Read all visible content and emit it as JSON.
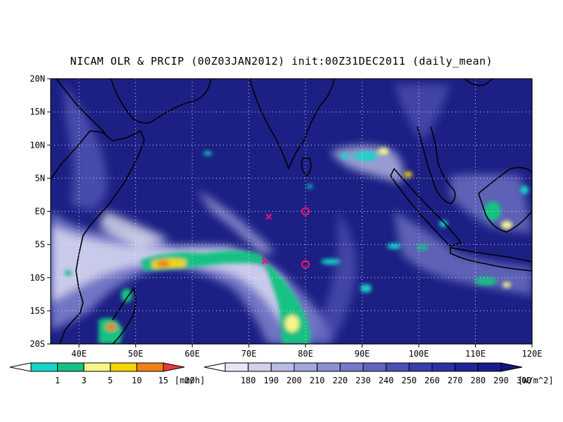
{
  "title": "NICAM OLR & PRCIP (00Z03JAN2012) init:00Z31DEC2011 (daily_mean)",
  "map": {
    "lon_range": [
      35,
      120
    ],
    "lat_range": [
      -20,
      20
    ],
    "lat_labels": [
      "20N",
      "15N",
      "10N",
      "5N",
      "EQ",
      "5S",
      "10S",
      "15S",
      "20S"
    ],
    "lon_labels": [
      "40E",
      "50E",
      "60E",
      "70E",
      "80E",
      "90E",
      "100E",
      "110E",
      "120E"
    ],
    "grid": "dotted",
    "background_color": "#1c2085"
  },
  "markers": [
    {
      "type": "cross",
      "lon": 73.5,
      "lat": -0.8,
      "color": "#e8107a"
    },
    {
      "type": "cross",
      "lon": 72.8,
      "lat": -7.5,
      "color": "#e8107a"
    },
    {
      "type": "circle",
      "lon": 80.0,
      "lat": 0.0,
      "color": "#e8107a"
    },
    {
      "type": "circle",
      "lon": 80.0,
      "lat": -8.0,
      "color": "#e8107a"
    }
  ],
  "precip_legend": {
    "labels": [
      "1",
      "3",
      "5",
      "10",
      "15",
      "20"
    ],
    "unit": "[mm/h]",
    "colors": [
      "#ffffff",
      "#16d6c8",
      "#16c182",
      "#f5f58c",
      "#f4d400",
      "#f08018",
      "#e83a3a"
    ]
  },
  "olr_legend": {
    "labels": [
      "180",
      "190",
      "200",
      "210",
      "220",
      "230",
      "240",
      "250",
      "260",
      "270",
      "280",
      "290",
      "300"
    ],
    "unit": "[W/m^2]",
    "colors": [
      "#ffffff",
      "#e6e6f5",
      "#d0d1ec",
      "#b9bbe3",
      "#a3a5da",
      "#8c8fd1",
      "#7679c8",
      "#6064bf",
      "#4b4fb3",
      "#3a3eaa",
      "#2c30a0",
      "#212595",
      "#1a1d88",
      "#13157a"
    ]
  }
}
